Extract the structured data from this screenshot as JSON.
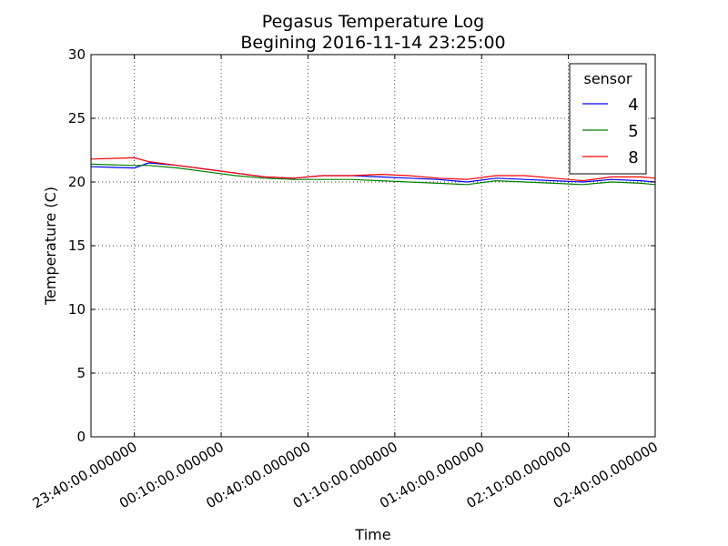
{
  "chart_data": {
    "type": "line",
    "title": "Pegasus Temperature Log",
    "subtitle": "Begining 2016-11-14 23:25:00",
    "xlabel": "Time",
    "ylabel": "Temperature (C)",
    "xlim": [
      "23:25:00",
      "02:40:00"
    ],
    "ylim": [
      0,
      30
    ],
    "yticks": [
      0,
      5,
      10,
      15,
      20,
      25,
      30
    ],
    "xticks": [
      "23:40:00.000000",
      "00:10:00.000000",
      "00:40:00.000000",
      "01:10:00.000000",
      "01:40:00.000000",
      "02:10:00.000000",
      "02:40:00.000000"
    ],
    "grid": true,
    "legend": {
      "title": "sensor",
      "position": "top-right"
    },
    "x": [
      "23:25:00",
      "23:40:00",
      "23:45:00",
      "23:55:00",
      "00:05:00",
      "00:15:00",
      "00:25:00",
      "00:35:00",
      "00:45:00",
      "00:55:00",
      "01:05:00",
      "01:15:00",
      "01:25:00",
      "01:35:00",
      "01:45:00",
      "01:55:00",
      "02:05:00",
      "02:15:00",
      "02:25:00",
      "02:35:00",
      "02:40:00"
    ],
    "series": [
      {
        "name": "4",
        "color": "#0000ff",
        "values": [
          21.2,
          21.1,
          21.5,
          21.3,
          21.0,
          20.7,
          20.4,
          20.3,
          20.5,
          20.5,
          20.4,
          20.3,
          20.2,
          20.0,
          20.3,
          20.2,
          20.1,
          20.0,
          20.2,
          20.1,
          20.0
        ]
      },
      {
        "name": "5",
        "color": "#008000",
        "values": [
          21.4,
          21.3,
          21.3,
          21.1,
          20.8,
          20.5,
          20.3,
          20.2,
          20.2,
          20.2,
          20.1,
          20.0,
          19.9,
          19.8,
          20.1,
          20.0,
          19.9,
          19.8,
          20.0,
          19.9,
          19.8
        ]
      },
      {
        "name": "8",
        "color": "#ff0000",
        "values": [
          21.8,
          21.9,
          21.6,
          21.3,
          21.0,
          20.7,
          20.4,
          20.3,
          20.5,
          20.5,
          20.6,
          20.5,
          20.3,
          20.2,
          20.5,
          20.5,
          20.3,
          20.1,
          20.4,
          20.4,
          20.3
        ]
      }
    ]
  }
}
